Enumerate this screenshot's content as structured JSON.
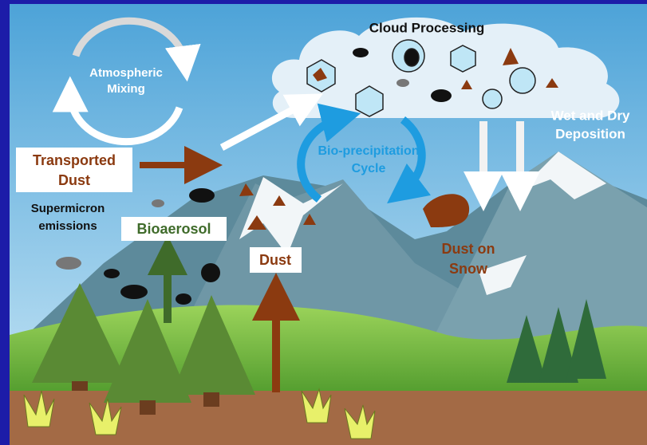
{
  "labels": {
    "cloud_processing": [
      "Cloud Processing"
    ],
    "atmospheric_mixing": [
      "Atmospheric",
      "Mixing"
    ],
    "wet_dry_deposition": [
      "Wet and Dry",
      "Deposition"
    ],
    "transported_dust": [
      "Transported",
      "Dust"
    ],
    "bio_precipitation": [
      "Bio-precipitation",
      "Cycle"
    ],
    "supermicron": [
      "Supermicron",
      "emissions"
    ],
    "bioaerosol": [
      "Bioaerosol"
    ],
    "dust": [
      "Dust"
    ],
    "dust_on_snow": [
      "Dust on",
      "Snow"
    ]
  }
}
